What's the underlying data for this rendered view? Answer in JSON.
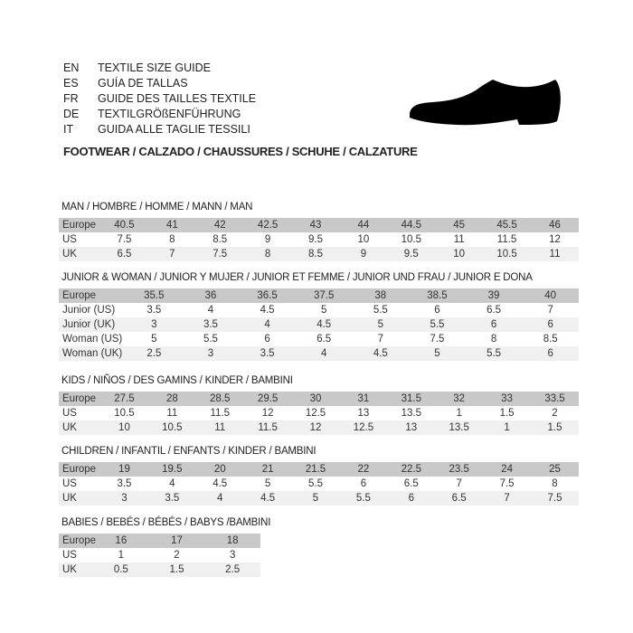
{
  "languages": [
    {
      "code": "EN",
      "title": "TEXTILE SIZE GUIDE"
    },
    {
      "code": "ES",
      "title": "GUÍA DE TALLAS"
    },
    {
      "code": "FR",
      "title": "GUIDE DES TAILLES TEXTILE"
    },
    {
      "code": "DE",
      "title": "TEXTILGRÖßENFÜHRUNG"
    },
    {
      "code": "IT",
      "title": "GUIDA ALLE TAGLIE TESSILI"
    }
  ],
  "heading": "FOOTWEAR / CALZADO / CHAUSSURES / SCHUHE / CALZATURE",
  "icon": "shoe-silhouette",
  "sections": [
    {
      "title": "MAN / HOMBRE / HOMME / MANN / MAN",
      "rows": [
        [
          "Europe",
          "40.5",
          "41",
          "42",
          "42.5",
          "43",
          "44",
          "44.5",
          "45",
          "45.5",
          "46"
        ],
        [
          "US",
          "7.5",
          "8",
          "8.5",
          "9",
          "9.5",
          "10",
          "10.5",
          "11",
          "11.5",
          "12"
        ],
        [
          "UK",
          "6.5",
          "7",
          "7.5",
          "8",
          "8.5",
          "9",
          "9.5",
          "10",
          "10.5",
          "11"
        ]
      ]
    },
    {
      "title": "JUNIOR & WOMAN / JUNIOR Y MUJER / JUNIOR ET FEMME / JUNIOR UND FRAU / JUNIOR E DONA",
      "rows": [
        [
          "Europe",
          "35.5",
          "36",
          "36.5",
          "37.5",
          "38",
          "38.5",
          "39",
          "40"
        ],
        [
          "Junior (US)",
          "3.5",
          "4",
          "4.5",
          "5",
          "5.5",
          "6",
          "6.5",
          "7"
        ],
        [
          "Junior (UK)",
          "3",
          "3.5",
          "4",
          "4.5",
          "5",
          "5.5",
          "6",
          "6"
        ],
        [
          "Woman (US)",
          "5",
          "5.5",
          "6",
          "6.5",
          "7",
          "7.5",
          "8",
          "8.5"
        ],
        [
          "Woman (UK)",
          "2.5",
          "3",
          "3.5",
          "4",
          "4.5",
          "5",
          "5.5",
          "6"
        ]
      ]
    },
    {
      "title": "KIDS / NIÑOS / DES GAMINS / KINDER / BAMBINI",
      "rows": [
        [
          "Europe",
          "27.5",
          "28",
          "28.5",
          "29.5",
          "30",
          "31",
          "31.5",
          "32",
          "33",
          "33.5"
        ],
        [
          "US",
          "10.5",
          "11",
          "11.5",
          "12",
          "12.5",
          "13",
          "13.5",
          "1",
          "1.5",
          "2"
        ],
        [
          "UK",
          "10",
          "10.5",
          "11",
          "11.5",
          "12",
          "12.5",
          "13",
          "13.5",
          "1",
          "1.5"
        ]
      ]
    },
    {
      "title": "CHILDREN / INFANTIL / ENFANTS / KINDER / BAMBINI",
      "rows": [
        [
          "Europe",
          "19",
          "19.5",
          "20",
          "21",
          "21.5",
          "22",
          "22.5",
          "23.5",
          "24",
          "25"
        ],
        [
          "US",
          "3.5",
          "4",
          "4.5",
          "5",
          "5.5",
          "6",
          "6.5",
          "7",
          "7.5",
          "8"
        ],
        [
          "UK",
          "3",
          "3.5",
          "4",
          "4.5",
          "5",
          "5.5",
          "6",
          "6.5",
          "7",
          "7.5"
        ]
      ]
    },
    {
      "title": "BABIES  / BEBÉS / BÉBÉS / BABYS /BAMBINI",
      "rows": [
        [
          "Europe",
          "16",
          "17",
          "18"
        ],
        [
          "US",
          "1",
          "2",
          "3"
        ],
        [
          "UK",
          "0.5",
          "1.5",
          "2.5"
        ]
      ]
    }
  ]
}
